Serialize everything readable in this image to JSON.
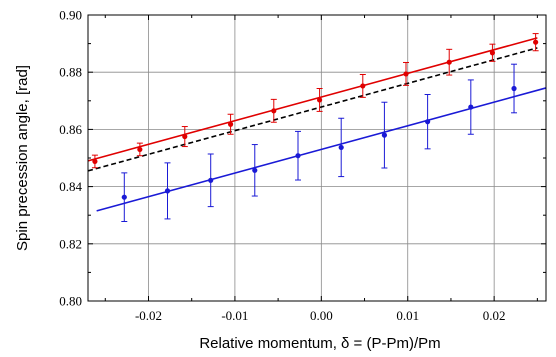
{
  "chart_data": {
    "type": "scatter",
    "title": "",
    "xlabel": "Relative momentum,  δ = (P-Pm)/Pm",
    "ylabel": "Spin precession angle, [rad]",
    "xlim": [
      -0.027,
      0.026
    ],
    "ylim": [
      0.8,
      0.9
    ],
    "xticks": [
      -0.02,
      -0.01,
      0.0,
      0.01,
      0.02
    ],
    "xtick_labels": [
      "-0.02",
      "-0.01",
      "0.00",
      "0.01",
      "0.02"
    ],
    "yticks": [
      0.8,
      0.82,
      0.84,
      0.86,
      0.88,
      0.9
    ],
    "ytick_labels": [
      "0.80",
      "0.82",
      "0.84",
      "0.86",
      "0.88",
      "0.90"
    ],
    "grid": true,
    "zero_line_x": 0.0,
    "series": [
      {
        "color": "#e00000",
        "points": [
          {
            "x": -0.0262,
            "y": 0.8488,
            "err": 0.0022
          },
          {
            "x": -0.021,
            "y": 0.853,
            "err": 0.0022
          },
          {
            "x": -0.0158,
            "y": 0.8575,
            "err": 0.0035
          },
          {
            "x": -0.0105,
            "y": 0.8618,
            "err": 0.0035
          },
          {
            "x": -0.0055,
            "y": 0.8665,
            "err": 0.004
          },
          {
            "x": -0.0002,
            "y": 0.8703,
            "err": 0.004
          },
          {
            "x": 0.0048,
            "y": 0.8752,
            "err": 0.004
          },
          {
            "x": 0.0098,
            "y": 0.8794,
            "err": 0.004
          },
          {
            "x": 0.0148,
            "y": 0.8835,
            "err": 0.0045
          },
          {
            "x": 0.0198,
            "y": 0.8868,
            "err": 0.003
          },
          {
            "x": 0.0248,
            "y": 0.8905,
            "err": 0.003
          }
        ],
        "fit": {
          "x": [
            -0.027,
            0.025
          ],
          "y": [
            0.849,
            0.892
          ]
        }
      },
      {
        "color": "#1a1ad6",
        "points": [
          {
            "x": -0.0228,
            "y": 0.8363,
            "err": 0.0085
          },
          {
            "x": -0.0178,
            "y": 0.8385,
            "err": 0.0098
          },
          {
            "x": -0.0128,
            "y": 0.8422,
            "err": 0.0092
          },
          {
            "x": -0.0077,
            "y": 0.8457,
            "err": 0.009
          },
          {
            "x": -0.0027,
            "y": 0.8508,
            "err": 0.0085
          },
          {
            "x": 0.0023,
            "y": 0.8537,
            "err": 0.0102
          },
          {
            "x": 0.0073,
            "y": 0.858,
            "err": 0.0115
          },
          {
            "x": 0.0123,
            "y": 0.8627,
            "err": 0.0095
          },
          {
            "x": 0.0173,
            "y": 0.8678,
            "err": 0.0095
          },
          {
            "x": 0.0223,
            "y": 0.8743,
            "err": 0.0085
          }
        ],
        "fit": {
          "x": [
            -0.026,
            0.026
          ],
          "y": [
            0.8315,
            0.8745
          ]
        }
      }
    ],
    "reference_line": {
      "style": "dashed",
      "color": "#000000",
      "x": [
        -0.027,
        0.025
      ],
      "y": [
        0.8455,
        0.8885
      ]
    }
  }
}
